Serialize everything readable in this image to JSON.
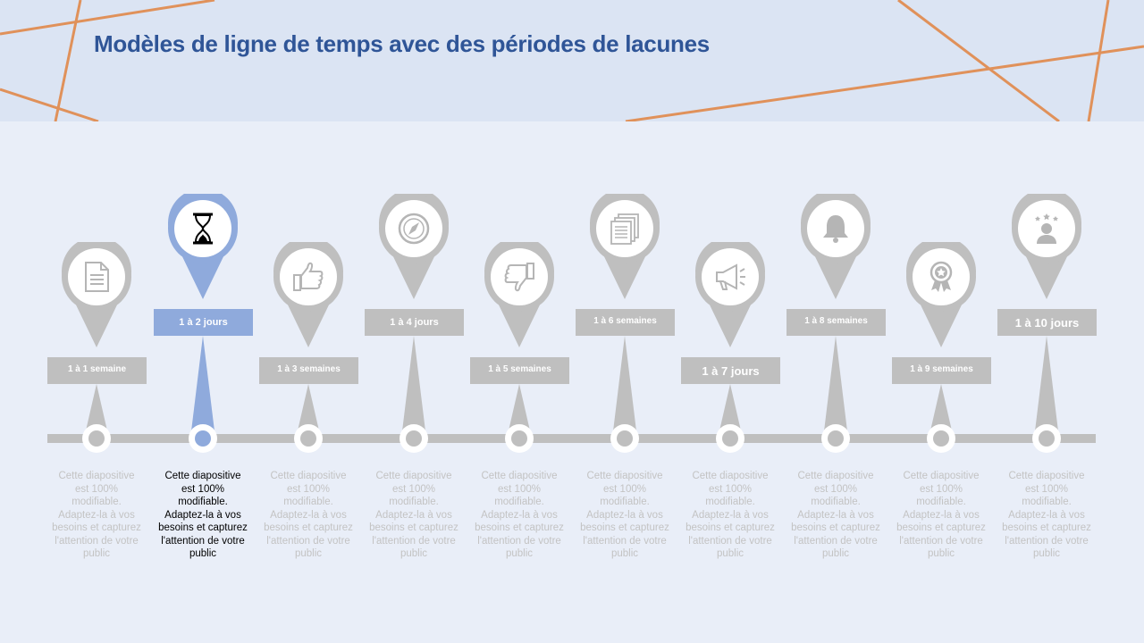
{
  "title": "Modèles de ligne de temps avec des périodes de lacunes",
  "colors": {
    "accent": "#8faadc",
    "neutral": "#bfbfbf",
    "title": "#2f5597",
    "header_lines": "#e0915a"
  },
  "milestones": [
    {
      "label": "1 à 1 semaine",
      "icon": "document-icon",
      "description": "Cette diapositive est 100% modifiable. Adaptez-la à vos besoins et capturez l'attention de votre public",
      "active": false
    },
    {
      "label": "1 à 2 jours",
      "icon": "hourglass-icon",
      "description": "Cette diapositive est 100% modifiable. Adaptez-la à vos besoins et capturez l'attention de votre public",
      "active": true
    },
    {
      "label": "1 à 3 semaines",
      "icon": "thumbs-up-icon",
      "description": "Cette diapositive est 100% modifiable. Adaptez-la à vos besoins et capturez l'attention de votre public",
      "active": false
    },
    {
      "label": "1 à 4 jours",
      "icon": "compass-icon",
      "description": "Cette diapositive est 100% modifiable. Adaptez-la à vos besoins et capturez l'attention de votre public",
      "active": false
    },
    {
      "label": "1 à 5 semaines",
      "icon": "thumbs-down-icon",
      "description": "Cette diapositive est 100% modifiable. Adaptez-la à vos besoins et capturez l'attention de votre public",
      "active": false
    },
    {
      "label": "1 à 6 semaines",
      "icon": "documents-icon",
      "description": "Cette diapositive est 100% modifiable. Adaptez-la à vos besoins et capturez l'attention de votre public",
      "active": false
    },
    {
      "label": "1 à 7 jours",
      "icon": "megaphone-icon",
      "description": "Cette diapositive est 100% modifiable. Adaptez-la à vos besoins et capturez l'attention de votre public",
      "active": false
    },
    {
      "label": "1 à 8 semaines",
      "icon": "bell-icon",
      "description": "Cette diapositive est 100% modifiable. Adaptez-la à vos besoins et capturez l'attention de votre public",
      "active": false
    },
    {
      "label": "1 à 9 semaines",
      "icon": "award-icon",
      "description": "Cette diapositive est 100% modifiable. Adaptez-la à vos besoins et capturez l'attention de votre public",
      "active": false
    },
    {
      "label": "1 à 10 jours",
      "icon": "star-person-icon",
      "description": "Cette diapositive est 100% modifiable. Adaptez-la à vos besoins et capturez l'attention de votre public",
      "active": false
    }
  ]
}
